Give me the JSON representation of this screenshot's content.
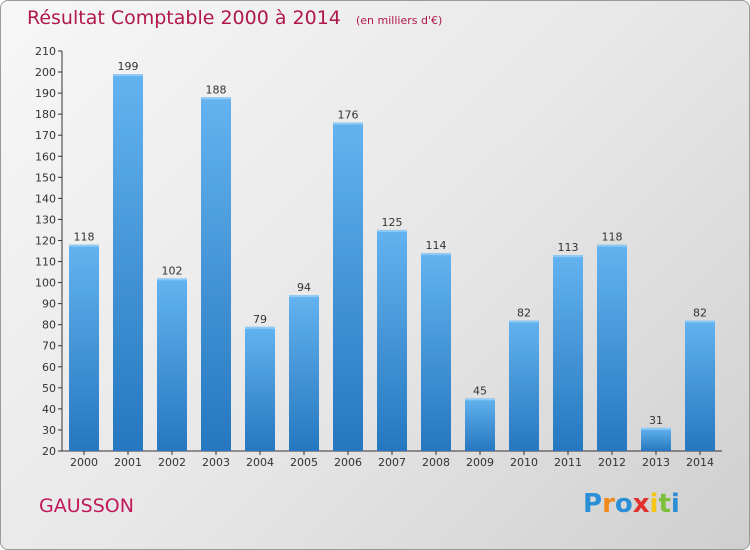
{
  "title": "Résultat Comptable 2000 à 2014",
  "subtitle": "(en milliers d'€)",
  "commune": "GAUSSON",
  "logo": {
    "letters": [
      "P",
      "r",
      "o",
      "x",
      "i",
      "t",
      "i"
    ],
    "colors": [
      "#2b8fd6",
      "#f08a1c",
      "#2b8fd6",
      "#e0312d",
      "#f5c518",
      "#7bbf3a",
      "#2b8fd6"
    ]
  },
  "colors": {
    "bar": "#3a8fd8",
    "bar_light": "#5fb0ec",
    "bar_dark": "#2473b8",
    "title": "#b0174e"
  },
  "chart_data": {
    "type": "bar",
    "categories": [
      "2000",
      "2001",
      "2002",
      "2003",
      "2004",
      "2005",
      "2006",
      "2007",
      "2008",
      "2009",
      "2010",
      "2011",
      "2012",
      "2013",
      "2014"
    ],
    "values": [
      118,
      199,
      102,
      188,
      79,
      94,
      176,
      125,
      114,
      45,
      82,
      113,
      118,
      31,
      82
    ],
    "ylim": [
      20,
      210
    ],
    "yticks": [
      20,
      30,
      40,
      50,
      60,
      70,
      80,
      90,
      100,
      110,
      120,
      130,
      140,
      150,
      160,
      170,
      180,
      190,
      200,
      210
    ],
    "grid": false
  }
}
